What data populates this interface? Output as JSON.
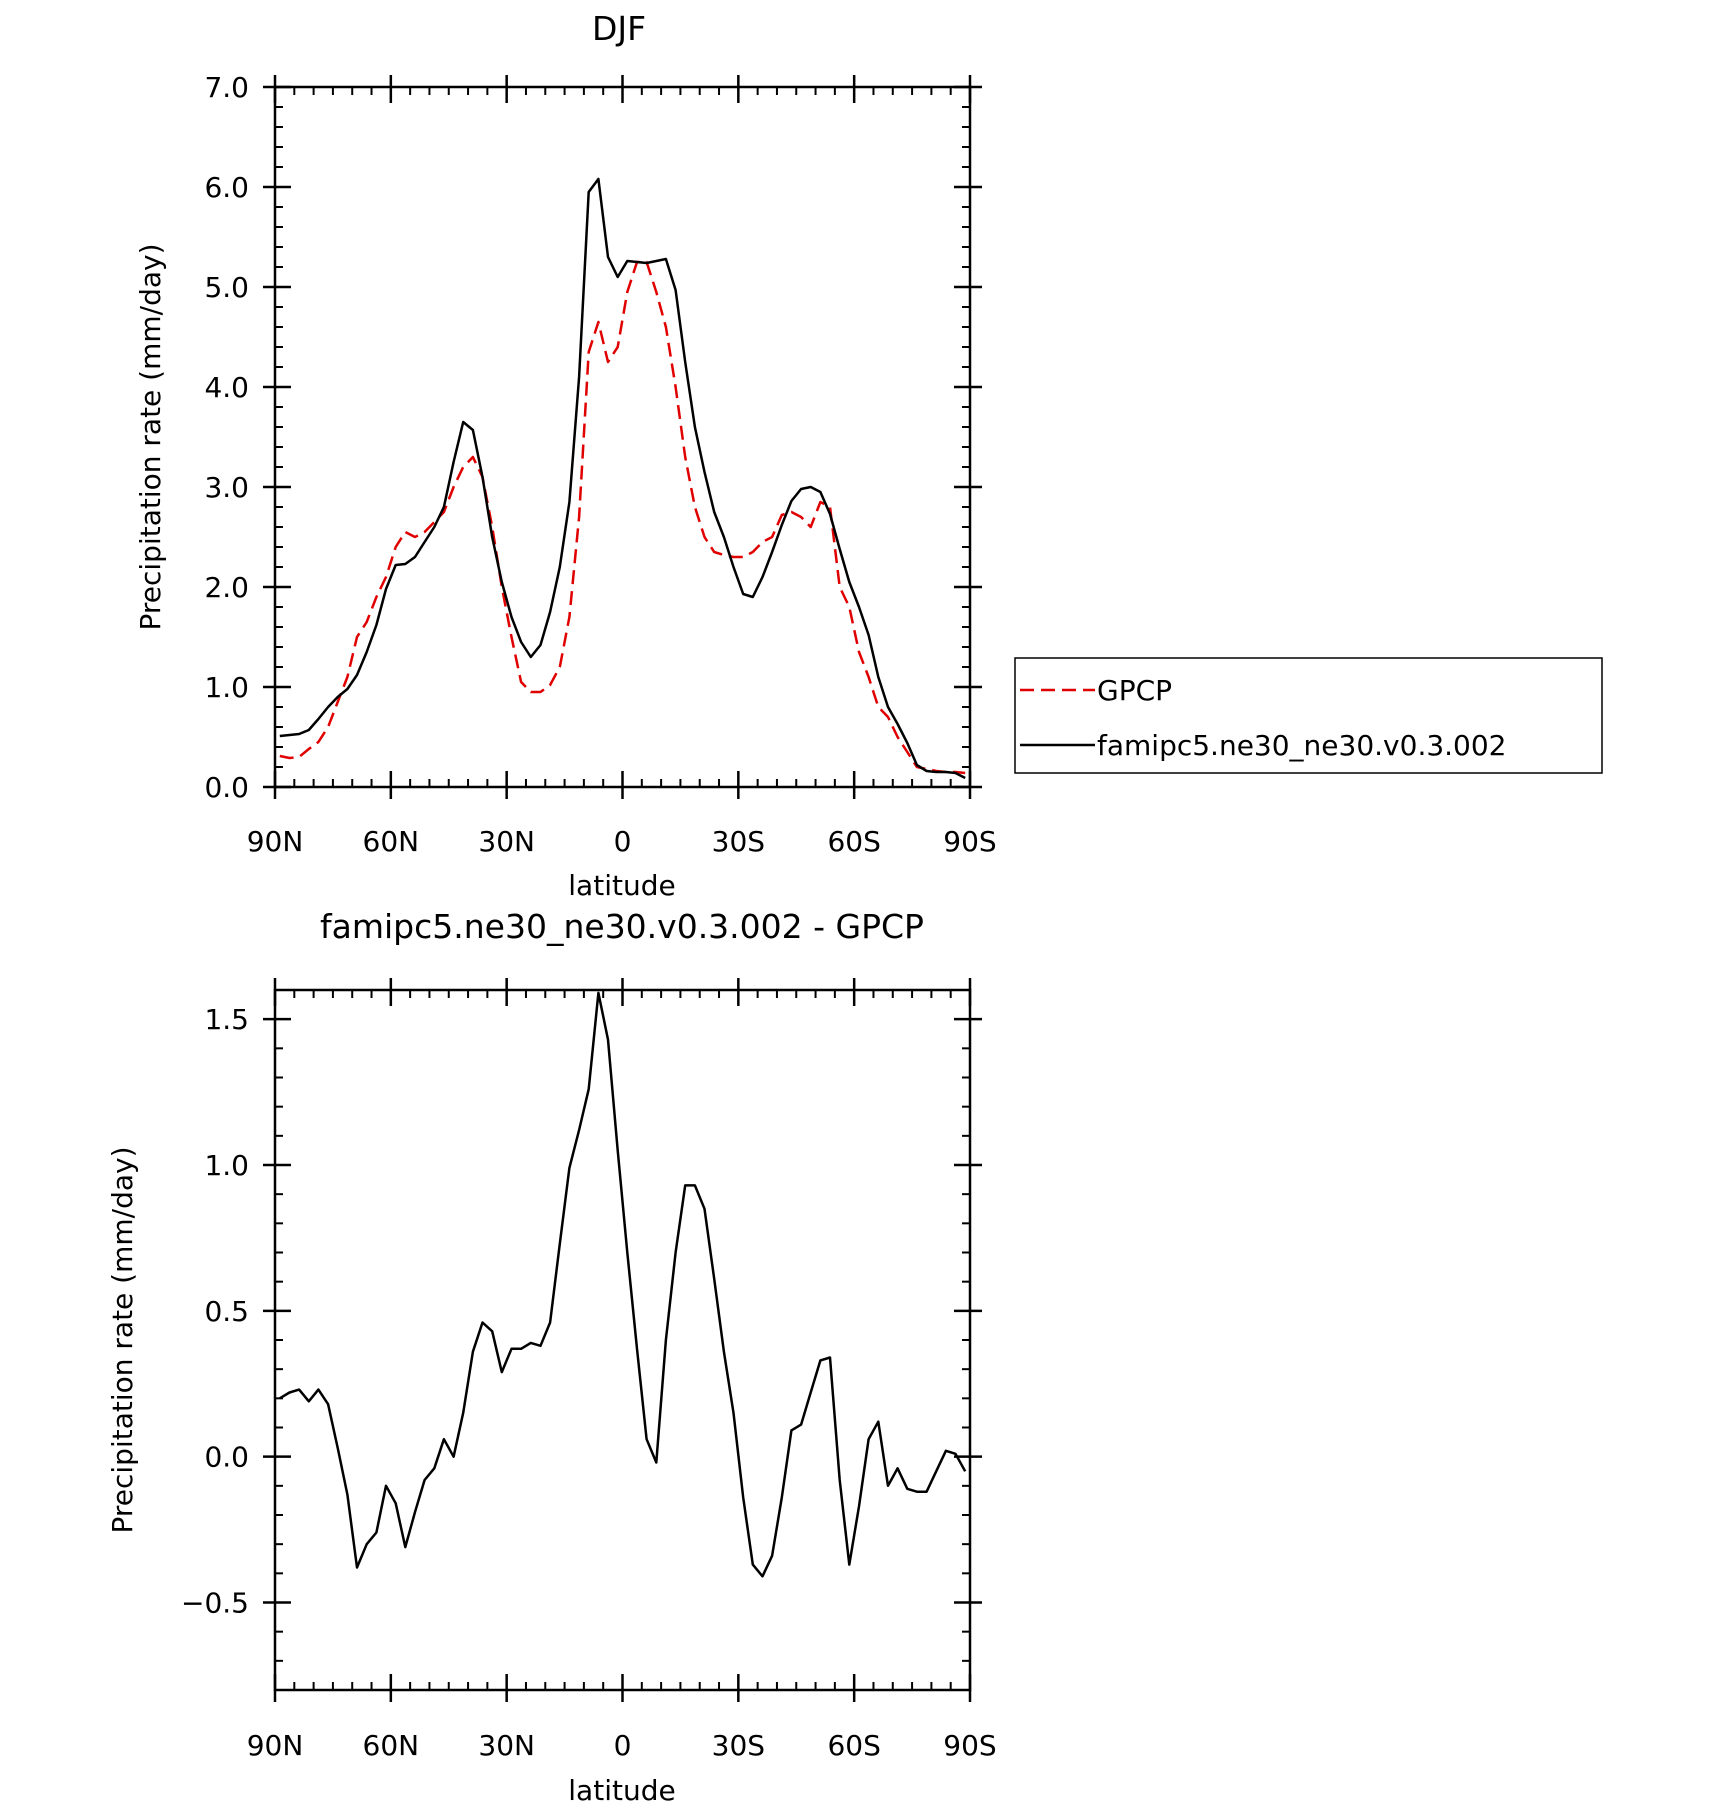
{
  "chart_data": [
    {
      "type": "line",
      "title": "DJF",
      "xlabel": "latitude",
      "ylabel": "Precipitation rate (mm/day)",
      "xlim": [
        90,
        -90
      ],
      "ylim": [
        0,
        7
      ],
      "x_ticks": [
        90,
        60,
        30,
        0,
        -30,
        -60,
        -90
      ],
      "x_tick_labels": [
        "90N",
        "60N",
        "30N",
        "0",
        "30S",
        "60S",
        "90S"
      ],
      "y_ticks": [
        0,
        1,
        2,
        3,
        4,
        5,
        6,
        7
      ],
      "y_tick_labels": [
        "0.0",
        "1.0",
        "2.0",
        "3.0",
        "4.0",
        "5.0",
        "6.0",
        "7.0"
      ],
      "legend": {
        "position": "right",
        "entries": [
          "GPCP",
          "famipc5.ne30_ne30.v0.3.002"
        ]
      },
      "series": [
        {
          "name": "GPCP",
          "color": "#e00000",
          "dash": true,
          "x": [
            88.75,
            86.25,
            83.75,
            81.25,
            78.75,
            76.25,
            73.75,
            71.25,
            68.75,
            66.25,
            63.75,
            61.25,
            58.75,
            56.25,
            53.75,
            51.25,
            48.75,
            46.25,
            43.75,
            41.25,
            38.75,
            36.25,
            33.75,
            31.25,
            28.75,
            26.25,
            23.75,
            21.25,
            18.75,
            16.25,
            13.75,
            11.25,
            8.75,
            6.25,
            3.75,
            1.25,
            -1.25,
            -3.75,
            -6.25,
            -8.75,
            -11.25,
            -13.75,
            -16.25,
            -18.75,
            -21.25,
            -23.75,
            -26.25,
            -28.75,
            -31.25,
            -33.75,
            -36.25,
            -38.75,
            -41.25,
            -43.75,
            -46.25,
            -48.75,
            -51.25,
            -53.75,
            -56.25,
            -58.75,
            -61.25,
            -63.75,
            -66.25,
            -68.75,
            -71.25,
            -73.75,
            -76.25,
            -78.75,
            -81.25,
            -83.75,
            -86.25,
            -88.75
          ],
          "y": [
            0.31,
            0.29,
            0.3,
            0.38,
            0.45,
            0.6,
            0.85,
            1.1,
            1.5,
            1.65,
            1.9,
            2.1,
            2.4,
            2.55,
            2.5,
            2.55,
            2.65,
            2.75,
            3.0,
            3.2,
            3.3,
            3.1,
            2.6,
            2.0,
            1.5,
            1.05,
            0.95,
            0.95,
            1.02,
            1.2,
            1.7,
            2.7,
            4.35,
            4.65,
            4.25,
            4.4,
            4.95,
            5.25,
            5.25,
            4.95,
            4.6,
            4.0,
            3.3,
            2.8,
            2.5,
            2.35,
            2.32,
            2.3,
            2.3,
            2.35,
            2.45,
            2.5,
            2.72,
            2.75,
            2.7,
            2.6,
            2.85,
            2.8,
            2.0,
            1.8,
            1.35,
            1.1,
            0.8,
            0.7,
            0.5,
            0.35,
            0.2,
            0.18,
            0.16,
            0.15,
            0.15,
            0.14
          ]
        },
        {
          "name": "famipc5.ne30_ne30.v0.3.002",
          "color": "#000000",
          "dash": false,
          "x": [
            88.75,
            86.25,
            83.75,
            81.25,
            78.75,
            76.25,
            73.75,
            71.25,
            68.75,
            66.25,
            63.75,
            61.25,
            58.75,
            56.25,
            53.75,
            51.25,
            48.75,
            46.25,
            43.75,
            41.25,
            38.75,
            36.25,
            33.75,
            31.25,
            28.75,
            26.25,
            23.75,
            21.25,
            18.75,
            16.25,
            13.75,
            11.25,
            8.75,
            6.25,
            3.75,
            1.25,
            -1.25,
            -3.75,
            -6.25,
            -8.75,
            -11.25,
            -13.75,
            -16.25,
            -18.75,
            -21.25,
            -23.75,
            -26.25,
            -28.75,
            -31.25,
            -33.75,
            -36.25,
            -38.75,
            -41.25,
            -43.75,
            -46.25,
            -48.75,
            -51.25,
            -53.75,
            -56.25,
            -58.75,
            -61.25,
            -63.75,
            -66.25,
            -68.75,
            -71.25,
            -73.75,
            -76.25,
            -78.75,
            -81.25,
            -83.75,
            -86.25,
            -88.75
          ],
          "y": [
            0.51,
            0.52,
            0.53,
            0.57,
            0.68,
            0.8,
            0.9,
            0.98,
            1.12,
            1.35,
            1.62,
            1.98,
            2.22,
            2.23,
            2.3,
            2.45,
            2.6,
            2.8,
            3.25,
            3.65,
            3.57,
            3.1,
            2.5,
            2.05,
            1.7,
            1.45,
            1.3,
            1.42,
            1.75,
            2.2,
            2.85,
            4.1,
            5.95,
            6.08,
            5.3,
            5.1,
            5.26,
            5.25,
            5.24,
            5.26,
            5.28,
            4.97,
            4.25,
            3.6,
            3.15,
            2.75,
            2.5,
            2.2,
            1.93,
            1.9,
            2.1,
            2.35,
            2.62,
            2.86,
            2.98,
            3.0,
            2.95,
            2.73,
            2.38,
            2.05,
            1.8,
            1.52,
            1.1,
            0.8,
            0.63,
            0.44,
            0.22,
            0.16,
            0.15,
            0.15,
            0.14,
            0.09
          ]
        }
      ]
    },
    {
      "type": "line",
      "title": "famipc5.ne30_ne30.v0.3.002 - GPCP",
      "xlabel": "latitude",
      "ylabel": "Precipitation rate (mm/day)",
      "xlim": [
        90,
        -90
      ],
      "ylim": [
        -0.8,
        1.6
      ],
      "x_ticks": [
        90,
        60,
        30,
        0,
        -30,
        -60,
        -90
      ],
      "x_tick_labels": [
        "90N",
        "60N",
        "30N",
        "0",
        "30S",
        "60S",
        "90S"
      ],
      "y_ticks": [
        -0.5,
        0,
        0.5,
        1.0,
        1.5
      ],
      "y_tick_labels": [
        "-0.5",
        "0.0",
        "0.5",
        "1.0",
        "1.5"
      ],
      "series": [
        {
          "color": "#000000",
          "dash": false,
          "x": [
            88.75,
            86.25,
            83.75,
            81.25,
            78.75,
            76.25,
            73.75,
            71.25,
            68.75,
            66.25,
            63.75,
            61.25,
            58.75,
            56.25,
            53.75,
            51.25,
            48.75,
            46.25,
            43.75,
            41.25,
            38.75,
            36.25,
            33.75,
            31.25,
            28.75,
            26.25,
            23.75,
            21.25,
            18.75,
            16.25,
            13.75,
            11.25,
            8.75,
            6.25,
            3.75,
            1.25,
            -1.25,
            -3.75,
            -6.25,
            -8.75,
            -11.25,
            -13.75,
            -16.25,
            -18.75,
            -21.25,
            -23.75,
            -26.25,
            -28.75,
            -31.25,
            -33.75,
            -36.25,
            -38.75,
            -41.25,
            -43.75,
            -46.25,
            -48.75,
            -51.25,
            -53.75,
            -56.25,
            -58.75,
            -61.25,
            -63.75,
            -66.25,
            -68.75,
            -71.25,
            -73.75,
            -76.25,
            -78.75,
            -81.25,
            -83.75,
            -86.25,
            -88.75
          ],
          "y": [
            0.2,
            0.22,
            0.23,
            0.19,
            0.23,
            0.18,
            0.03,
            -0.13,
            -0.38,
            -0.3,
            -0.26,
            -0.1,
            -0.16,
            -0.31,
            -0.19,
            -0.08,
            -0.04,
            0.06,
            0.0,
            0.15,
            0.36,
            0.46,
            0.43,
            0.29,
            0.37,
            0.37,
            0.39,
            0.38,
            0.46,
            0.73,
            0.99,
            1.12,
            1.26,
            1.59,
            1.43,
            1.05,
            0.7,
            0.37,
            0.06,
            -0.02,
            0.4,
            0.7,
            0.93,
            0.93,
            0.85,
            0.61,
            0.36,
            0.15,
            -0.14,
            -0.37,
            -0.41,
            -0.34,
            -0.14,
            0.09,
            0.11,
            0.22,
            0.33,
            0.34,
            -0.08,
            -0.37,
            -0.17,
            0.06,
            0.12,
            -0.1,
            -0.04,
            -0.11,
            -0.12,
            -0.12,
            -0.05,
            0.02,
            0.01,
            -0.05
          ]
        }
      ]
    }
  ]
}
